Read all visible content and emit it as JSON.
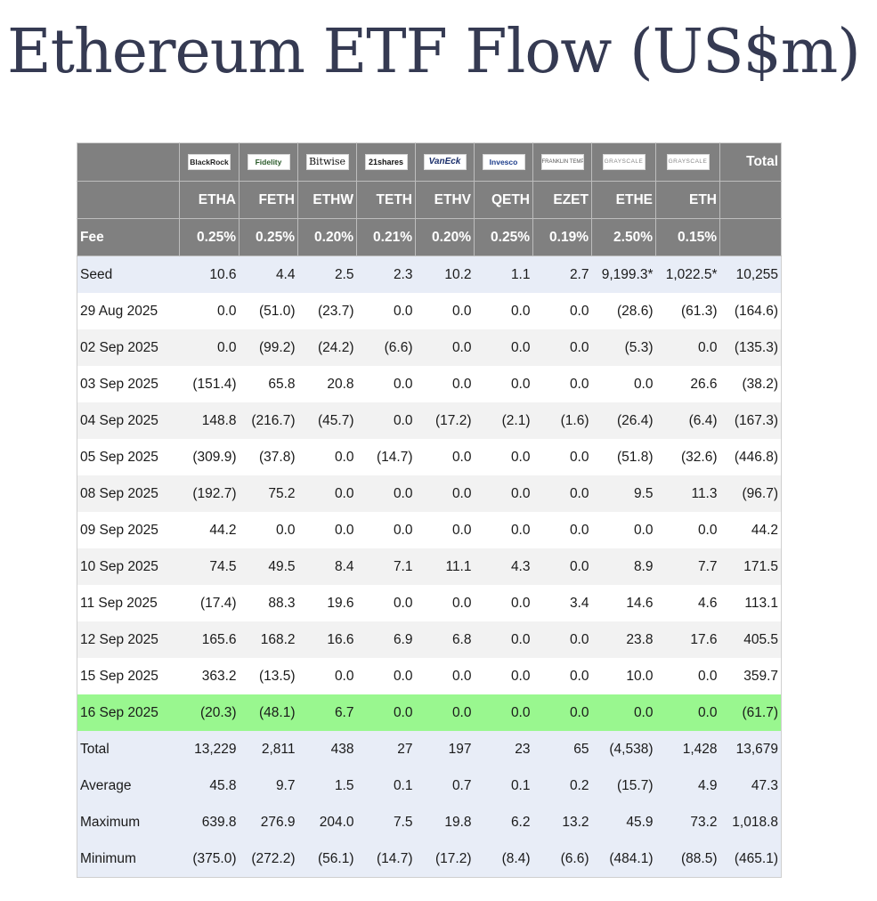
{
  "title": "Ethereum ETF Flow (US$m)",
  "issuers": [
    {
      "name": "BlackRock",
      "icon": "blackrock-logo"
    },
    {
      "name": "Fidelity",
      "icon": "fidelity-logo"
    },
    {
      "name": "Bitwise",
      "icon": "bitwise-logo"
    },
    {
      "name": "21shares",
      "icon": "21shares-logo"
    },
    {
      "name": "VanEck",
      "icon": "vaneck-logo"
    },
    {
      "name": "Invesco",
      "icon": "invesco-logo"
    },
    {
      "name": "FRANKLIN TEMPLETON",
      "icon": "franklin-templeton-logo"
    },
    {
      "name": "GRAYSCALE",
      "icon": "grayscale-logo"
    },
    {
      "name": "GRAYSCALE",
      "icon": "grayscale-logo"
    }
  ],
  "total_header": "Total",
  "tickers": [
    "ETHA",
    "FETH",
    "ETHW",
    "TETH",
    "ETHV",
    "QETH",
    "EZET",
    "ETHE",
    "ETH"
  ],
  "fee_label": "Fee",
  "fees": [
    "0.25%",
    "0.25%",
    "0.20%",
    "0.21%",
    "0.20%",
    "0.25%",
    "0.19%",
    "2.50%",
    "0.15%"
  ],
  "rows": [
    {
      "label": "Seed",
      "style": "blue",
      "values": [
        "10.6",
        "4.4",
        "2.5",
        "2.3",
        "10.2",
        "1.1",
        "2.7",
        "9,199.3*",
        "1,022.5*",
        "10,255"
      ]
    },
    {
      "label": "29 Aug 2025",
      "style": "white",
      "values": [
        "0.0",
        "(51.0)",
        "(23.7)",
        "0.0",
        "0.0",
        "0.0",
        "0.0",
        "(28.6)",
        "(61.3)",
        "(164.6)"
      ]
    },
    {
      "label": "02 Sep 2025",
      "style": "gray",
      "values": [
        "0.0",
        "(99.2)",
        "(24.2)",
        "(6.6)",
        "0.0",
        "0.0",
        "0.0",
        "(5.3)",
        "0.0",
        "(135.3)"
      ]
    },
    {
      "label": "03 Sep 2025",
      "style": "white",
      "values": [
        "(151.4)",
        "65.8",
        "20.8",
        "0.0",
        "0.0",
        "0.0",
        "0.0",
        "0.0",
        "26.6",
        "(38.2)"
      ]
    },
    {
      "label": "04 Sep 2025",
      "style": "gray",
      "values": [
        "148.8",
        "(216.7)",
        "(45.7)",
        "0.0",
        "(17.2)",
        "(2.1)",
        "(1.6)",
        "(26.4)",
        "(6.4)",
        "(167.3)"
      ]
    },
    {
      "label": "05 Sep 2025",
      "style": "white",
      "values": [
        "(309.9)",
        "(37.8)",
        "0.0",
        "(14.7)",
        "0.0",
        "0.0",
        "0.0",
        "(51.8)",
        "(32.6)",
        "(446.8)"
      ]
    },
    {
      "label": "08 Sep 2025",
      "style": "gray",
      "values": [
        "(192.7)",
        "75.2",
        "0.0",
        "0.0",
        "0.0",
        "0.0",
        "0.0",
        "9.5",
        "11.3",
        "(96.7)"
      ]
    },
    {
      "label": "09 Sep 2025",
      "style": "white",
      "values": [
        "44.2",
        "0.0",
        "0.0",
        "0.0",
        "0.0",
        "0.0",
        "0.0",
        "0.0",
        "0.0",
        "44.2"
      ]
    },
    {
      "label": "10 Sep 2025",
      "style": "gray",
      "values": [
        "74.5",
        "49.5",
        "8.4",
        "7.1",
        "11.1",
        "4.3",
        "0.0",
        "8.9",
        "7.7",
        "171.5"
      ]
    },
    {
      "label": "11 Sep 2025",
      "style": "white",
      "values": [
        "(17.4)",
        "88.3",
        "19.6",
        "0.0",
        "0.0",
        "0.0",
        "3.4",
        "14.6",
        "4.6",
        "113.1"
      ]
    },
    {
      "label": "12 Sep 2025",
      "style": "gray",
      "values": [
        "165.6",
        "168.2",
        "16.6",
        "6.9",
        "6.8",
        "0.0",
        "0.0",
        "23.8",
        "17.6",
        "405.5"
      ]
    },
    {
      "label": "15 Sep 2025",
      "style": "white",
      "values": [
        "363.2",
        "(13.5)",
        "0.0",
        "0.0",
        "0.0",
        "0.0",
        "0.0",
        "10.0",
        "0.0",
        "359.7"
      ]
    },
    {
      "label": "16 Sep 2025",
      "style": "green",
      "values": [
        "(20.3)",
        "(48.1)",
        "6.7",
        "0.0",
        "0.0",
        "0.0",
        "0.0",
        "0.0",
        "0.0",
        "(61.7)"
      ]
    },
    {
      "label": "Total",
      "style": "blue",
      "values": [
        "13,229",
        "2,811",
        "438",
        "27",
        "197",
        "23",
        "65",
        "(4,538)",
        "1,428",
        "13,679"
      ]
    },
    {
      "label": "Average",
      "style": "blue",
      "values": [
        "45.8",
        "9.7",
        "1.5",
        "0.1",
        "0.7",
        "0.1",
        "0.2",
        "(15.7)",
        "4.9",
        "47.3"
      ]
    },
    {
      "label": "Maximum",
      "style": "blue",
      "values": [
        "639.8",
        "276.9",
        "204.0",
        "7.5",
        "19.8",
        "6.2",
        "13.2",
        "45.9",
        "73.2",
        "1,018.8"
      ]
    },
    {
      "label": "Minimum",
      "style": "blue",
      "values": [
        "(375.0)",
        "(272.2)",
        "(56.1)",
        "(14.7)",
        "(17.2)",
        "(8.4)",
        "(6.6)",
        "(484.1)",
        "(88.5)",
        "(465.1)"
      ]
    }
  ],
  "colors": {
    "header_bg": "#808080",
    "highlight_row": "#99f78f",
    "negative": "#e0202e",
    "summary_row": "#e8edf7",
    "title": "#353a52"
  }
}
